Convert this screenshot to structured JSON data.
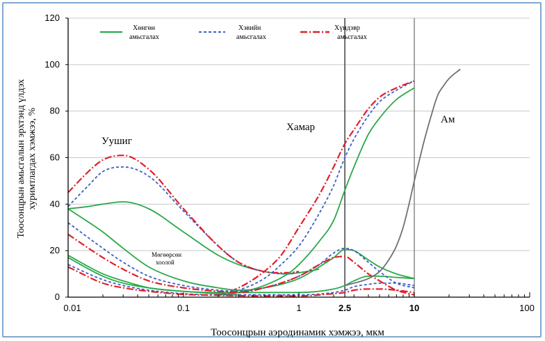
{
  "chart_data": {
    "type": "line",
    "xscale": "log",
    "xlim": [
      0.01,
      100
    ],
    "ylim": [
      0,
      120
    ],
    "x_ticks": [
      "0.01",
      "0.1",
      "1",
      "2.5",
      "10",
      "100"
    ],
    "y_ticks": [
      "0",
      "20",
      "40",
      "60",
      "80",
      "100",
      "120"
    ],
    "xlabel": "Тоосонцрын аэродинамик хэмжээ, мкм",
    "ylabel_line1": "Тоосонцрын амьсгалын эрхтэнд үлдэх",
    "ylabel_line2": "хуримтлагдах хэмжээ, %",
    "vertical_lines": [
      2.5,
      10
    ],
    "region_labels": {
      "nose": "Хамар",
      "mouth": "Ам",
      "lung": "Уушиг",
      "trachea_line1": "Мөгөөрсөн",
      "trachea_line2": "хоолой"
    },
    "legend": [
      {
        "label_line1": "Хөнгөн",
        "label_line2": "амьсгалах",
        "color": "#2aa84a",
        "dash": "solid"
      },
      {
        "label_line1": "Хэвийн",
        "label_line2": "амьсгалах",
        "color": "#3a5fc8",
        "dash": "dashed"
      },
      {
        "label_line1": "Хүндэвр",
        "label_line2": "амьсгалах",
        "color": "#e0202a",
        "dash": "dashdot"
      }
    ],
    "series": [
      {
        "group": "light",
        "region": "lung",
        "color": "#2aa84a",
        "dash": "solid",
        "x": [
          0.01,
          0.015,
          0.02,
          0.03,
          0.05,
          0.1,
          0.2,
          0.3,
          0.5,
          0.8,
          1.0,
          1.5
        ],
        "y": [
          38,
          39,
          40,
          41,
          38,
          28,
          18,
          14,
          11,
          10,
          10.5,
          12
        ]
      },
      {
        "group": "normal",
        "region": "lung",
        "color": "#3a5fc8",
        "dash": "dashed",
        "x": [
          0.01,
          0.015,
          0.02,
          0.03,
          0.05,
          0.1,
          0.2,
          0.3,
          0.5,
          0.8,
          1.0
        ],
        "y": [
          39,
          48,
          54,
          56,
          52,
          37,
          22,
          15,
          11,
          10,
          11
        ]
      },
      {
        "group": "heavy",
        "region": "lung",
        "color": "#e0202a",
        "dash": "dashdot",
        "x": [
          0.01,
          0.015,
          0.02,
          0.03,
          0.05,
          0.1,
          0.2,
          0.3,
          0.5,
          0.8,
          1.0
        ],
        "y": [
          45,
          54,
          59,
          61,
          55,
          38,
          22,
          15,
          11,
          10.5,
          11
        ]
      },
      {
        "group": "light",
        "region": "nose",
        "color": "#2aa84a",
        "dash": "solid",
        "x": [
          0.2,
          0.3,
          0.5,
          0.8,
          1,
          1.5,
          2,
          2.5,
          3,
          4,
          5,
          7,
          10
        ],
        "y": [
          1,
          2,
          5,
          10,
          14,
          24,
          33,
          46,
          56,
          70,
          77,
          85,
          90
        ]
      },
      {
        "group": "normal",
        "region": "nose",
        "color": "#3a5fc8",
        "dash": "dashed",
        "x": [
          0.2,
          0.3,
          0.5,
          0.7,
          1,
          1.5,
          2,
          2.5,
          3,
          4,
          5,
          7,
          10
        ],
        "y": [
          1,
          3,
          8,
          14,
          22,
          36,
          48,
          60,
          68,
          78,
          84,
          89,
          93
        ]
      },
      {
        "group": "heavy",
        "region": "nose",
        "color": "#e0202a",
        "dash": "dashdot",
        "x": [
          0.2,
          0.3,
          0.5,
          0.7,
          1,
          1.5,
          2,
          2.5,
          3,
          4,
          5,
          7,
          10
        ],
        "y": [
          1,
          4,
          11,
          18,
          30,
          44,
          56,
          66,
          72,
          81,
          86,
          90,
          93
        ]
      },
      {
        "group": "light",
        "region": "trachea",
        "color": "#2aa84a",
        "dash": "solid",
        "x": [
          0.01,
          0.02,
          0.03,
          0.05,
          0.1,
          0.2,
          0.3,
          0.5,
          1,
          1.5,
          2,
          2.5,
          3,
          4,
          5,
          7,
          10
        ],
        "y": [
          38,
          28,
          21,
          13,
          7,
          4,
          3,
          4,
          8,
          13,
          17,
          20.5,
          20,
          16,
          13,
          10,
          8
        ]
      },
      {
        "group": "light",
        "region": "trachea",
        "color": "#2aa84a",
        "dash": "solid",
        "x": [
          0.01,
          0.02,
          0.03,
          0.05,
          0.1,
          0.2,
          0.3,
          0.5,
          1,
          2,
          2.5,
          3,
          4,
          5,
          7,
          10
        ],
        "y": [
          18,
          10,
          7,
          4,
          2.5,
          2,
          2,
          2,
          2,
          3.5,
          5,
          7,
          9,
          9,
          8.5,
          8
        ]
      },
      {
        "group": "normal",
        "region": "trachea",
        "color": "#3a5fc8",
        "dash": "dashed",
        "x": [
          0.01,
          0.02,
          0.03,
          0.05,
          0.1,
          0.2,
          0.3,
          0.5,
          1,
          1.5,
          2,
          2.5,
          3,
          4,
          5,
          7,
          10
        ],
        "y": [
          32,
          21,
          15,
          9,
          5,
          3,
          2.5,
          4,
          9,
          14,
          19,
          21,
          20,
          15,
          11,
          6,
          4
        ]
      },
      {
        "group": "heavy",
        "region": "trachea",
        "color": "#e0202a",
        "dash": "dashdot",
        "x": [
          0.01,
          0.02,
          0.03,
          0.05,
          0.1,
          0.2,
          0.3,
          0.5,
          1,
          1.5,
          2,
          2.5,
          3,
          4,
          5,
          7,
          10
        ],
        "y": [
          27,
          17,
          12,
          7,
          4,
          2.5,
          2,
          4,
          9,
          14,
          17,
          17.5,
          15,
          10,
          7,
          3,
          1
        ]
      },
      {
        "group": "light",
        "region": "trachea-low",
        "color": "#2aa84a",
        "dash": "solid",
        "x": [
          0.01,
          0.02,
          0.03,
          0.05,
          0.1,
          0.2,
          0.3
        ],
        "y": [
          17,
          9,
          6,
          4,
          2.5,
          1.5,
          1
        ]
      },
      {
        "group": "normal",
        "region": "trachea-low",
        "color": "#3a5fc8",
        "dash": "dashed",
        "x": [
          0.01,
          0.02,
          0.03,
          0.05,
          0.1,
          0.2,
          0.5,
          1,
          2,
          2.5,
          3,
          4,
          5,
          7,
          10
        ],
        "y": [
          14,
          7.5,
          5,
          3,
          1.5,
          1,
          1,
          1,
          2,
          3,
          4.5,
          5.5,
          6,
          6,
          5
        ]
      },
      {
        "group": "heavy",
        "region": "trachea-low",
        "color": "#e0202a",
        "dash": "dashdot",
        "x": [
          0.01,
          0.02,
          0.03,
          0.05,
          0.1,
          0.2,
          0.5,
          1,
          2,
          2.5,
          3,
          4,
          5,
          7,
          10
        ],
        "y": [
          13,
          6,
          4,
          2.5,
          1.2,
          0.8,
          0.5,
          0.5,
          1.5,
          2,
          3,
          3.5,
          3.5,
          3,
          2
        ]
      },
      {
        "group": "mouth",
        "region": "mouth",
        "color": "#707070",
        "dash": "solid",
        "x": [
          2.5,
          3,
          4,
          5,
          6,
          7,
          8,
          9,
          10,
          12,
          14,
          16,
          18,
          20,
          25
        ],
        "y": [
          5,
          6,
          8,
          11,
          16,
          22,
          30,
          40,
          50,
          66,
          78,
          87,
          91,
          94,
          98
        ]
      }
    ]
  }
}
